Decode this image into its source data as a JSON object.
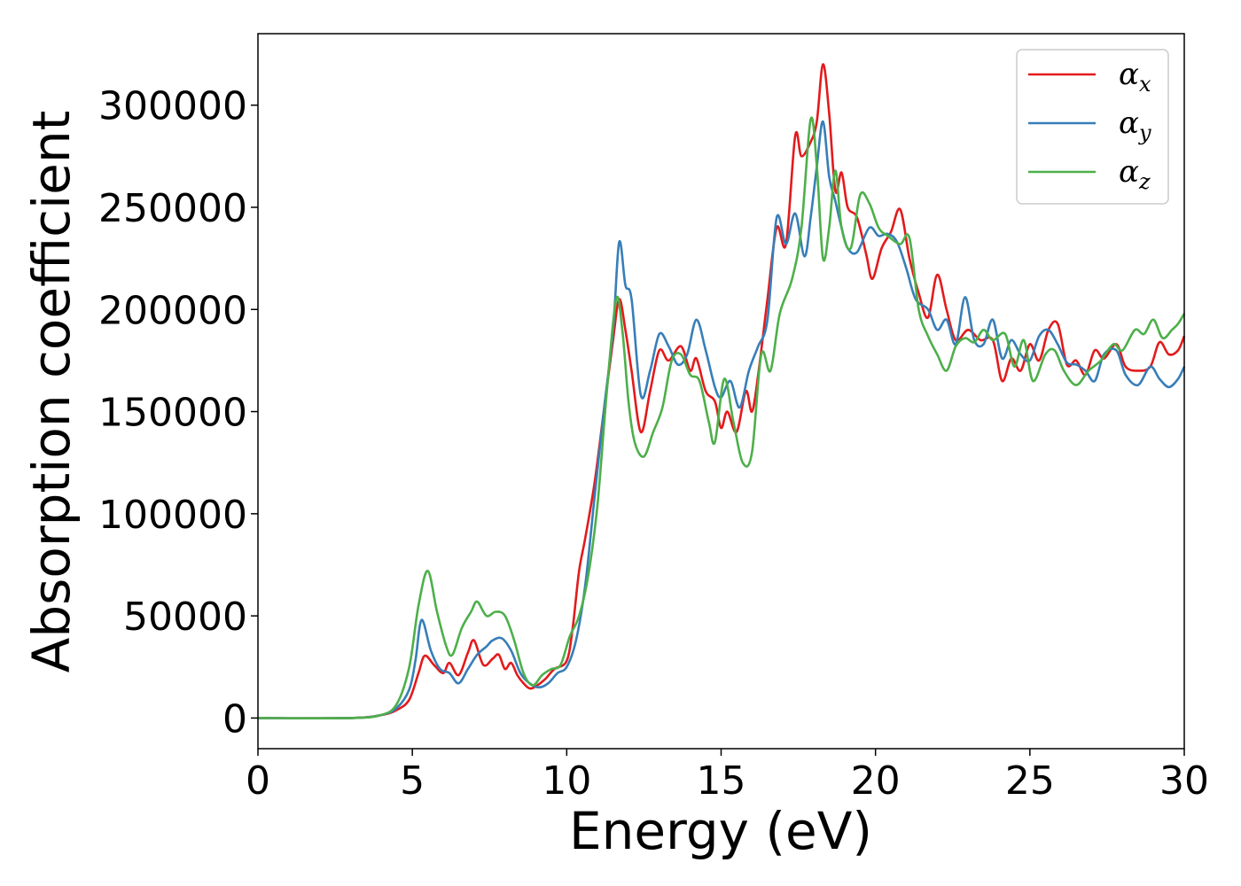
{
  "chart_data": {
    "type": "line",
    "title": "",
    "xlabel": "Energy (eV)",
    "ylabel": "Absorption coefficient",
    "xlim": [
      0,
      30
    ],
    "ylim": [
      -15000,
      335000
    ],
    "xticks": [
      0,
      5,
      10,
      15,
      20,
      25,
      30
    ],
    "yticks": [
      0,
      50000,
      100000,
      150000,
      200000,
      250000,
      300000
    ],
    "grid": false,
    "legend_position": "top-right",
    "series": [
      {
        "name": "α",
        "subscript": "x",
        "color": "#e31a1c",
        "points": [
          [
            0,
            0
          ],
          [
            3,
            0
          ],
          [
            4,
            1500
          ],
          [
            4.5,
            4000
          ],
          [
            4.9,
            9000
          ],
          [
            5.2,
            22000
          ],
          [
            5.4,
            30500
          ],
          [
            5.7,
            26000
          ],
          [
            6.0,
            22000
          ],
          [
            6.2,
            27000
          ],
          [
            6.5,
            21000
          ],
          [
            6.8,
            32000
          ],
          [
            7.0,
            38000
          ],
          [
            7.3,
            26000
          ],
          [
            7.6,
            29000
          ],
          [
            7.8,
            31000
          ],
          [
            8.0,
            24000
          ],
          [
            8.2,
            27000
          ],
          [
            8.4,
            21000
          ],
          [
            8.6,
            17000
          ],
          [
            8.8,
            14500
          ],
          [
            9.0,
            15500
          ],
          [
            9.3,
            19000
          ],
          [
            9.6,
            24000
          ],
          [
            10.0,
            28000
          ],
          [
            10.2,
            45000
          ],
          [
            10.4,
            72000
          ],
          [
            10.6,
            88000
          ],
          [
            10.9,
            115000
          ],
          [
            11.2,
            150000
          ],
          [
            11.5,
            185000
          ],
          [
            11.7,
            205000
          ],
          [
            11.9,
            190000
          ],
          [
            12.1,
            170000
          ],
          [
            12.4,
            140000
          ],
          [
            12.7,
            160000
          ],
          [
            13.0,
            180000
          ],
          [
            13.3,
            175000
          ],
          [
            13.7,
            182000
          ],
          [
            14.0,
            170000
          ],
          [
            14.2,
            176000
          ],
          [
            14.5,
            160000
          ],
          [
            14.8,
            155000
          ],
          [
            15.0,
            142000
          ],
          [
            15.2,
            150000
          ],
          [
            15.5,
            140000
          ],
          [
            15.8,
            160000
          ],
          [
            16.0,
            150000
          ],
          [
            16.2,
            168000
          ],
          [
            16.5,
            205000
          ],
          [
            16.8,
            240000
          ],
          [
            17.1,
            232000
          ],
          [
            17.4,
            285000
          ],
          [
            17.6,
            275000
          ],
          [
            17.9,
            282000
          ],
          [
            18.1,
            292000
          ],
          [
            18.3,
            320000
          ],
          [
            18.5,
            296000
          ],
          [
            18.7,
            258000
          ],
          [
            18.9,
            267000
          ],
          [
            19.1,
            250000
          ],
          [
            19.4,
            245000
          ],
          [
            19.7,
            227000
          ],
          [
            19.9,
            215000
          ],
          [
            20.2,
            230000
          ],
          [
            20.5,
            238000
          ],
          [
            20.8,
            249000
          ],
          [
            21.1,
            225000
          ],
          [
            21.4,
            208000
          ],
          [
            21.7,
            196000
          ],
          [
            22.0,
            217000
          ],
          [
            22.3,
            200000
          ],
          [
            22.6,
            185000
          ],
          [
            23.0,
            190000
          ],
          [
            23.4,
            185000
          ],
          [
            23.8,
            185000
          ],
          [
            24.1,
            165000
          ],
          [
            24.4,
            176000
          ],
          [
            24.7,
            170000
          ],
          [
            25.0,
            183000
          ],
          [
            25.3,
            175000
          ],
          [
            25.6,
            190000
          ],
          [
            25.9,
            193000
          ],
          [
            26.2,
            173000
          ],
          [
            26.5,
            175000
          ],
          [
            26.8,
            168000
          ],
          [
            27.1,
            180000
          ],
          [
            27.4,
            176000
          ],
          [
            27.8,
            183000
          ],
          [
            28.1,
            172000
          ],
          [
            28.5,
            170000
          ],
          [
            28.9,
            172000
          ],
          [
            29.2,
            184000
          ],
          [
            29.5,
            178000
          ],
          [
            29.8,
            180000
          ],
          [
            30.0,
            187000
          ]
        ]
      },
      {
        "name": "α",
        "subscript": "y",
        "color": "#377eb8",
        "points": [
          [
            0,
            0
          ],
          [
            3,
            0
          ],
          [
            4,
            1500
          ],
          [
            4.5,
            5000
          ],
          [
            4.9,
            14000
          ],
          [
            5.1,
            28000
          ],
          [
            5.3,
            48000
          ],
          [
            5.6,
            33000
          ],
          [
            5.9,
            24000
          ],
          [
            6.2,
            22000
          ],
          [
            6.5,
            17000
          ],
          [
            6.8,
            24000
          ],
          [
            7.1,
            31000
          ],
          [
            7.4,
            35000
          ],
          [
            7.6,
            38000
          ],
          [
            7.9,
            39000
          ],
          [
            8.2,
            33000
          ],
          [
            8.5,
            22000
          ],
          [
            8.8,
            17000
          ],
          [
            9.1,
            15000
          ],
          [
            9.4,
            17000
          ],
          [
            9.7,
            22000
          ],
          [
            10.0,
            25000
          ],
          [
            10.3,
            38000
          ],
          [
            10.6,
            65000
          ],
          [
            10.9,
            108000
          ],
          [
            11.2,
            150000
          ],
          [
            11.5,
            190000
          ],
          [
            11.7,
            233000
          ],
          [
            11.9,
            212000
          ],
          [
            12.1,
            205000
          ],
          [
            12.4,
            158000
          ],
          [
            12.7,
            170000
          ],
          [
            13.0,
            188000
          ],
          [
            13.3,
            182000
          ],
          [
            13.6,
            173000
          ],
          [
            13.9,
            178000
          ],
          [
            14.2,
            195000
          ],
          [
            14.5,
            180000
          ],
          [
            14.8,
            162000
          ],
          [
            15.0,
            157000
          ],
          [
            15.3,
            165000
          ],
          [
            15.6,
            152000
          ],
          [
            15.9,
            170000
          ],
          [
            16.2,
            182000
          ],
          [
            16.5,
            195000
          ],
          [
            16.8,
            245000
          ],
          [
            17.1,
            232000
          ],
          [
            17.4,
            247000
          ],
          [
            17.7,
            226000
          ],
          [
            17.9,
            245000
          ],
          [
            18.1,
            270000
          ],
          [
            18.3,
            292000
          ],
          [
            18.5,
            265000
          ],
          [
            18.7,
            253000
          ],
          [
            18.9,
            240000
          ],
          [
            19.1,
            230000
          ],
          [
            19.4,
            228000
          ],
          [
            19.8,
            240000
          ],
          [
            20.1,
            236000
          ],
          [
            20.4,
            237000
          ],
          [
            20.7,
            233000
          ],
          [
            21.0,
            220000
          ],
          [
            21.3,
            205000
          ],
          [
            21.7,
            200000
          ],
          [
            22.0,
            190000
          ],
          [
            22.3,
            195000
          ],
          [
            22.6,
            183000
          ],
          [
            22.9,
            206000
          ],
          [
            23.2,
            185000
          ],
          [
            23.5,
            183000
          ],
          [
            23.8,
            195000
          ],
          [
            24.1,
            176000
          ],
          [
            24.4,
            185000
          ],
          [
            24.7,
            178000
          ],
          [
            25.0,
            175000
          ],
          [
            25.3,
            187000
          ],
          [
            25.6,
            190000
          ],
          [
            25.9,
            183000
          ],
          [
            26.2,
            174000
          ],
          [
            26.5,
            173000
          ],
          [
            26.8,
            170000
          ],
          [
            27.1,
            165000
          ],
          [
            27.4,
            178000
          ],
          [
            27.8,
            180000
          ],
          [
            28.1,
            168000
          ],
          [
            28.5,
            163000
          ],
          [
            28.9,
            172000
          ],
          [
            29.2,
            166000
          ],
          [
            29.5,
            162000
          ],
          [
            29.8,
            166000
          ],
          [
            30.0,
            172000
          ]
        ]
      },
      {
        "name": "α",
        "subscript": "z",
        "color": "#4daf4a",
        "points": [
          [
            0,
            0
          ],
          [
            3,
            0
          ],
          [
            4,
            1500
          ],
          [
            4.5,
            7000
          ],
          [
            4.9,
            25000
          ],
          [
            5.2,
            55000
          ],
          [
            5.5,
            72000
          ],
          [
            5.8,
            52000
          ],
          [
            6.1,
            35000
          ],
          [
            6.3,
            31000
          ],
          [
            6.6,
            44000
          ],
          [
            6.9,
            52000
          ],
          [
            7.1,
            57000
          ],
          [
            7.4,
            50000
          ],
          [
            7.7,
            52000
          ],
          [
            8.0,
            50000
          ],
          [
            8.3,
            38000
          ],
          [
            8.6,
            22000
          ],
          [
            8.9,
            16000
          ],
          [
            9.2,
            21000
          ],
          [
            9.5,
            24000
          ],
          [
            9.8,
            26000
          ],
          [
            10.1,
            40000
          ],
          [
            10.4,
            50000
          ],
          [
            10.7,
            70000
          ],
          [
            11.0,
            105000
          ],
          [
            11.3,
            160000
          ],
          [
            11.6,
            205000
          ],
          [
            11.8,
            190000
          ],
          [
            12.0,
            155000
          ],
          [
            12.2,
            135000
          ],
          [
            12.5,
            128000
          ],
          [
            12.8,
            140000
          ],
          [
            13.1,
            152000
          ],
          [
            13.4,
            175000
          ],
          [
            13.7,
            178000
          ],
          [
            14.0,
            168000
          ],
          [
            14.3,
            165000
          ],
          [
            14.6,
            145000
          ],
          [
            14.8,
            135000
          ],
          [
            15.1,
            166000
          ],
          [
            15.4,
            145000
          ],
          [
            15.7,
            125000
          ],
          [
            16.0,
            130000
          ],
          [
            16.3,
            178000
          ],
          [
            16.6,
            170000
          ],
          [
            16.9,
            198000
          ],
          [
            17.3,
            215000
          ],
          [
            17.6,
            240000
          ],
          [
            17.9,
            293000
          ],
          [
            18.1,
            270000
          ],
          [
            18.3,
            225000
          ],
          [
            18.5,
            240000
          ],
          [
            18.7,
            268000
          ],
          [
            18.9,
            240000
          ],
          [
            19.2,
            230000
          ],
          [
            19.5,
            256000
          ],
          [
            19.8,
            252000
          ],
          [
            20.1,
            240000
          ],
          [
            20.4,
            236000
          ],
          [
            20.8,
            232000
          ],
          [
            21.1,
            235000
          ],
          [
            21.4,
            200000
          ],
          [
            21.7,
            187000
          ],
          [
            22.0,
            178000
          ],
          [
            22.3,
            170000
          ],
          [
            22.6,
            182000
          ],
          [
            22.9,
            186000
          ],
          [
            23.2,
            184000
          ],
          [
            23.5,
            190000
          ],
          [
            23.8,
            185000
          ],
          [
            24.2,
            188000
          ],
          [
            24.5,
            172000
          ],
          [
            24.8,
            185000
          ],
          [
            25.1,
            165000
          ],
          [
            25.5,
            178000
          ],
          [
            25.8,
            180000
          ],
          [
            26.1,
            170000
          ],
          [
            26.5,
            163000
          ],
          [
            26.9,
            170000
          ],
          [
            27.3,
            175000
          ],
          [
            27.7,
            183000
          ],
          [
            28.0,
            180000
          ],
          [
            28.4,
            190000
          ],
          [
            28.7,
            188000
          ],
          [
            29.0,
            195000
          ],
          [
            29.3,
            186000
          ],
          [
            29.6,
            190000
          ],
          [
            29.8,
            193000
          ],
          [
            30.0,
            198000
          ]
        ]
      }
    ]
  }
}
